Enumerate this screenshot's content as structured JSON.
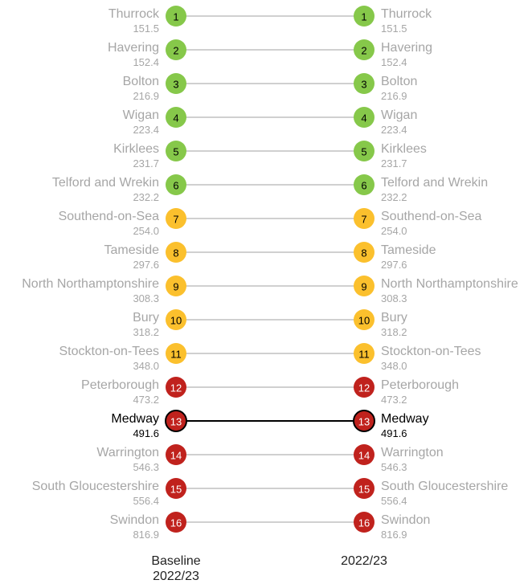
{
  "chart_data": {
    "type": "slope",
    "categories": [
      "Thurrock",
      "Havering",
      "Bolton",
      "Wigan",
      "Kirklees",
      "Telford and Wrekin",
      "Southend-on-Sea",
      "Tameside",
      "North Northamptonshire",
      "Bury",
      "Stockton-on-Tees",
      "Peterborough",
      "Medway",
      "Warrington",
      "South Gloucestershire",
      "Swindon"
    ],
    "colors": [
      "#86c84a",
      "#86c84a",
      "#86c84a",
      "#86c84a",
      "#86c84a",
      "#86c84a",
      "#fbc02d",
      "#fbc02d",
      "#fbc02d",
      "#fbc02d",
      "#fbc02d",
      "#c0221d",
      "#c0221d",
      "#c0221d",
      "#c0221d",
      "#c0221d"
    ],
    "highlight_index": 12,
    "series": [
      {
        "name": "Baseline 2022/23",
        "ranks": [
          1,
          2,
          3,
          4,
          5,
          6,
          7,
          8,
          9,
          10,
          11,
          12,
          13,
          14,
          15,
          16
        ],
        "values": [
          151.5,
          152.4,
          216.9,
          223.4,
          231.7,
          232.2,
          254.0,
          297.6,
          308.3,
          318.2,
          348.0,
          473.2,
          491.6,
          546.3,
          556.4,
          816.9
        ],
        "value_labels": [
          "151.5",
          "152.4",
          "216.9",
          "223.4",
          "231.7",
          "232.2",
          "254.0",
          "297.6",
          "308.3",
          "318.2",
          "348.0",
          "473.2",
          "491.6",
          "546.3",
          "556.4",
          "816.9"
        ]
      },
      {
        "name": "2022/23",
        "ranks": [
          1,
          2,
          3,
          4,
          5,
          6,
          7,
          8,
          9,
          10,
          11,
          12,
          13,
          14,
          15,
          16
        ],
        "values": [
          151.5,
          152.4,
          216.9,
          223.4,
          231.7,
          232.2,
          254.0,
          297.6,
          308.3,
          318.2,
          348.0,
          473.2,
          491.6,
          546.3,
          556.4,
          816.9
        ],
        "value_labels": [
          "151.5",
          "152.4",
          "216.9",
          "223.4",
          "231.7",
          "232.2",
          "254.0",
          "297.6",
          "308.3",
          "318.2",
          "348.0",
          "473.2",
          "491.6",
          "546.3",
          "556.4",
          "816.9"
        ]
      }
    ]
  }
}
